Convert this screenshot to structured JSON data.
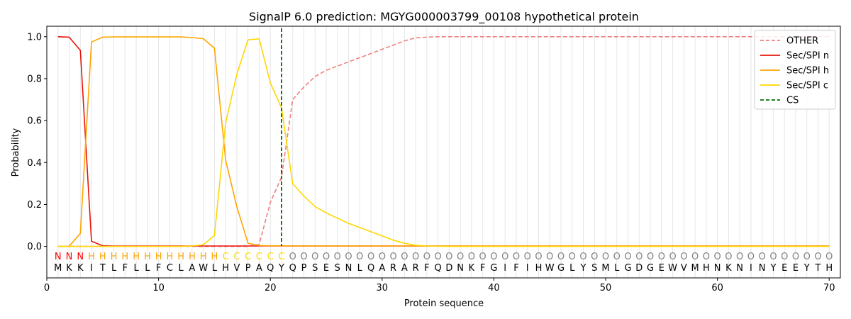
{
  "chart_data": {
    "type": "line",
    "title": "SignalP 6.0 prediction: MGYG000003799_00108 hypothetical protein",
    "xlabel": "Protein sequence",
    "ylabel": "Probability",
    "xlim": [
      0,
      71
    ],
    "ylim": [
      -0.15,
      1.05
    ],
    "xticks": [
      0,
      10,
      20,
      30,
      40,
      50,
      60,
      70
    ],
    "yticks": [
      0.0,
      0.2,
      0.4,
      0.6,
      0.8,
      1.0
    ],
    "x": [
      1,
      2,
      3,
      4,
      5,
      6,
      7,
      8,
      9,
      10,
      11,
      12,
      13,
      14,
      15,
      16,
      17,
      18,
      19,
      20,
      21,
      22,
      23,
      24,
      25,
      26,
      27,
      28,
      29,
      30,
      31,
      32,
      33,
      34,
      35,
      36,
      37,
      38,
      39,
      40,
      41,
      42,
      43,
      44,
      45,
      46,
      47,
      48,
      49,
      50,
      51,
      52,
      53,
      54,
      55,
      56,
      57,
      58,
      59,
      60,
      61,
      62,
      63,
      64,
      65,
      66,
      67,
      68,
      69,
      70
    ],
    "sequence": [
      "M",
      "K",
      "K",
      "I",
      "T",
      "L",
      "F",
      "L",
      "L",
      "F",
      "C",
      "L",
      "A",
      "W",
      "L",
      "H",
      "V",
      "P",
      "A",
      "Q",
      "Y",
      "Q",
      "P",
      "S",
      "E",
      "S",
      "N",
      "L",
      "Q",
      "A",
      "R",
      "A",
      "R",
      "F",
      "Q",
      "D",
      "N",
      "K",
      "F",
      "G",
      "I",
      "F",
      "I",
      "H",
      "W",
      "G",
      "L",
      "Y",
      "S",
      "M",
      "L",
      "G",
      "D",
      "G",
      "E",
      "W",
      "V",
      "M",
      "H",
      "N",
      "K",
      "N",
      "I",
      "N",
      "Y",
      "E",
      "E",
      "Y",
      "T",
      "H"
    ],
    "labels": [
      "N",
      "N",
      "N",
      "H",
      "H",
      "H",
      "H",
      "H",
      "H",
      "H",
      "H",
      "H",
      "H",
      "H",
      "H",
      "C",
      "C",
      "C",
      "C",
      "C",
      "C",
      "O",
      "O",
      "O",
      "O",
      "O",
      "O",
      "O",
      "O",
      "O",
      "O",
      "O",
      "O",
      "O",
      "O",
      "O",
      "O",
      "O",
      "O",
      "O",
      "O",
      "O",
      "O",
      "O",
      "O",
      "O",
      "O",
      "O",
      "O",
      "O",
      "O",
      "O",
      "O",
      "O",
      "O",
      "O",
      "O",
      "O",
      "O",
      "O",
      "O",
      "O",
      "O",
      "O",
      "O",
      "O",
      "O",
      "O",
      "O",
      "O"
    ],
    "label_colors": {
      "N": "#ff0000",
      "H": "#ffa500",
      "C": "#ffd700",
      "O": "#808080"
    },
    "cleavage_site": 21,
    "legend_position": "top-right",
    "series": [
      {
        "name": "OTHER",
        "color": "#f08080",
        "dash": true,
        "values": [
          0,
          0,
          0,
          0,
          0,
          0,
          0,
          0,
          0,
          0,
          0,
          0,
          0,
          0,
          0,
          0,
          0,
          0,
          0.01,
          0.21,
          0.33,
          0.7,
          0.76,
          0.81,
          0.84,
          0.86,
          0.88,
          0.9,
          0.92,
          0.94,
          0.96,
          0.98,
          0.995,
          0.998,
          1,
          1,
          1,
          1,
          1,
          1,
          1,
          1,
          1,
          1,
          1,
          1,
          1,
          1,
          1,
          1,
          1,
          1,
          1,
          1,
          1,
          1,
          1,
          1,
          1,
          1,
          1,
          1,
          1,
          1,
          1,
          1,
          1,
          1,
          1,
          1
        ]
      },
      {
        "name": "Sec/SPI n",
        "color": "#e8140a",
        "dash": false,
        "values": [
          1.0,
          0.998,
          0.935,
          0.025,
          0.003,
          0.002,
          0.002,
          0.002,
          0.002,
          0.002,
          0.002,
          0.002,
          0.002,
          0.002,
          0.002,
          0.002,
          0.002,
          0.002,
          0.002,
          0.002,
          0.002,
          0.002,
          0.002,
          0.002,
          0.002,
          0.002,
          0.002,
          0.002,
          0.002,
          0.002,
          0.002,
          0.002,
          0.002,
          0.002,
          0.002,
          0.002,
          0.002,
          0.002,
          0.002,
          0.002,
          0.002,
          0.002,
          0.002,
          0.002,
          0.002,
          0.002,
          0.002,
          0.002,
          0.002,
          0.002,
          0.002,
          0.002,
          0.002,
          0.002,
          0.002,
          0.002,
          0.002,
          0.002,
          0.002,
          0.002,
          0.002,
          0.002,
          0.002,
          0.002,
          0.002,
          0.002,
          0.002,
          0.002,
          0.002,
          0.002
        ]
      },
      {
        "name": "Sec/SPI h",
        "color": "#ffa500",
        "dash": false,
        "values": [
          0,
          0.001,
          0.062,
          0.975,
          0.998,
          0.999,
          0.999,
          0.999,
          0.999,
          0.999,
          0.999,
          0.999,
          0.996,
          0.991,
          0.945,
          0.41,
          0.19,
          0.015,
          0.004,
          0.003,
          0.003,
          0.002,
          0.002,
          0.002,
          0.002,
          0.002,
          0.002,
          0.002,
          0.002,
          0.002,
          0.002,
          0.002,
          0.002,
          0.002,
          0.002,
          0.002,
          0.002,
          0.002,
          0.002,
          0.002,
          0.002,
          0.002,
          0.002,
          0.002,
          0.002,
          0.002,
          0.002,
          0.002,
          0.002,
          0.002,
          0.002,
          0.002,
          0.002,
          0.002,
          0.002,
          0.002,
          0.002,
          0.002,
          0.002,
          0.002,
          0.002,
          0.002,
          0.002,
          0.002,
          0.002,
          0.002,
          0.002,
          0.002,
          0.002,
          0.002
        ]
      },
      {
        "name": "Sec/SPI c",
        "color": "#ffd700",
        "dash": false,
        "values": [
          0,
          0,
          0,
          0,
          0,
          0,
          0,
          0,
          0,
          0,
          0,
          0,
          0.002,
          0.008,
          0.052,
          0.59,
          0.82,
          0.985,
          0.99,
          0.78,
          0.66,
          0.3,
          0.24,
          0.19,
          0.16,
          0.135,
          0.11,
          0.09,
          0.07,
          0.05,
          0.03,
          0.015,
          0.006,
          0.002,
          0.001,
          0,
          0,
          0,
          0,
          0,
          0,
          0,
          0,
          0,
          0,
          0,
          0,
          0,
          0,
          0,
          0,
          0,
          0,
          0,
          0,
          0,
          0,
          0,
          0,
          0,
          0,
          0,
          0,
          0,
          0,
          0,
          0,
          0,
          0,
          0
        ]
      }
    ],
    "cs_series": {
      "name": "CS",
      "color": "#007000"
    }
  }
}
